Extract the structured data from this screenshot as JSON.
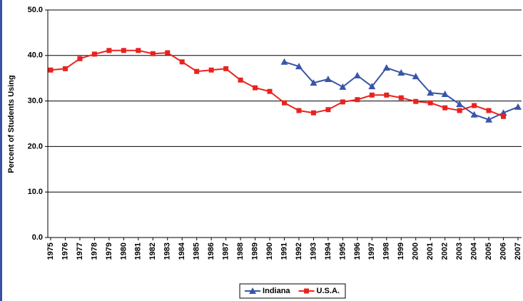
{
  "chart_data": {
    "type": "line",
    "y_label": "Percent of Students Using",
    "categories": [
      "1975",
      "1976",
      "1977",
      "1978",
      "1979",
      "1980",
      "1981",
      "1982",
      "1983",
      "1984",
      "1985",
      "1986",
      "1987",
      "1988",
      "1989",
      "1990",
      "1991",
      "1992",
      "1993",
      "1994",
      "1995",
      "1996",
      "1997",
      "1998",
      "1999",
      "2000",
      "2001",
      "2002",
      "2003",
      "2004",
      "2005",
      "2006",
      "2007"
    ],
    "series": [
      {
        "name": "Indiana",
        "color": "#3a55a8",
        "marker": "triangle",
        "values": [
          null,
          null,
          null,
          null,
          null,
          null,
          null,
          null,
          null,
          null,
          null,
          null,
          null,
          null,
          null,
          null,
          38.6,
          37.6,
          34.0,
          34.8,
          33.1,
          35.6,
          33.2,
          37.3,
          36.2,
          35.4,
          31.8,
          31.5,
          29.3,
          27.0,
          25.9,
          27.4,
          28.7
        ]
      },
      {
        "name": "U.S.A.",
        "color": "#e8231f",
        "marker": "square",
        "values": [
          36.8,
          37.1,
          39.3,
          40.3,
          41.1,
          41.1,
          41.1,
          40.4,
          40.6,
          38.6,
          36.5,
          36.8,
          37.1,
          34.6,
          32.9,
          32.1,
          29.6,
          27.9,
          27.4,
          28.1,
          29.8,
          30.3,
          31.3,
          31.3,
          30.7,
          29.9,
          29.6,
          28.5,
          27.9,
          29.0,
          27.9,
          26.6,
          null
        ]
      }
    ],
    "ylim": [
      0,
      50
    ],
    "yticks": [
      {
        "value": 0,
        "label": "0.0"
      },
      {
        "value": 10,
        "label": "10.0"
      },
      {
        "value": 20,
        "label": "20.0"
      },
      {
        "value": 30,
        "label": "30.0"
      },
      {
        "value": 40,
        "label": "40.0"
      },
      {
        "value": 50,
        "label": "50.0"
      }
    ],
    "grid": true,
    "legend": "bottom"
  }
}
